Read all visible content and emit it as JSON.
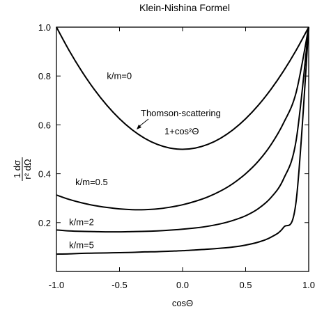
{
  "chart_data": {
    "type": "line",
    "title": "Klein-Nishina Formel",
    "xlabel": "cosΘ",
    "ylabel": {
      "numerator": "1 dσ",
      "denominator": "r² dΩ"
    },
    "xlim": [
      -1.0,
      1.0
    ],
    "ylim": [
      0.0,
      1.0
    ],
    "xticks": [
      -1.0,
      -0.5,
      0.0,
      0.5,
      1.0
    ],
    "xtick_labels": [
      "-1.0",
      "-0.5",
      "0.0",
      "0.5",
      "1.0"
    ],
    "yticks": [
      0.2,
      0.4,
      0.6,
      0.8,
      1.0
    ],
    "ytick_labels": [
      "0.2",
      "0.4",
      "0.6",
      "0.8",
      "1.0"
    ],
    "grid": false,
    "legend": "none",
    "line_color": "#000000",
    "series": [
      {
        "name": "k/m=0",
        "x": [
          -1.0,
          -0.9,
          -0.8,
          -0.7,
          -0.6,
          -0.5,
          -0.4,
          -0.3,
          -0.2,
          -0.1,
          0.0,
          0.1,
          0.2,
          0.3,
          0.4,
          0.5,
          0.6,
          0.7,
          0.8,
          0.9,
          1.0
        ],
        "y": [
          1.0,
          0.905,
          0.82,
          0.745,
          0.68,
          0.625,
          0.58,
          0.545,
          0.52,
          0.505,
          0.5,
          0.505,
          0.52,
          0.545,
          0.58,
          0.625,
          0.68,
          0.745,
          0.82,
          0.905,
          1.0
        ]
      },
      {
        "name": "k/m=0.5",
        "x": [
          -1.0,
          -0.9,
          -0.8,
          -0.7,
          -0.6,
          -0.5,
          -0.4,
          -0.3,
          -0.2,
          -0.1,
          0.0,
          0.1,
          0.2,
          0.3,
          0.4,
          0.5,
          0.6,
          0.7,
          0.8,
          0.9,
          1.0
        ],
        "y": [
          0.313,
          0.295,
          0.281,
          0.27,
          0.262,
          0.256,
          0.253,
          0.253,
          0.256,
          0.263,
          0.273,
          0.287,
          0.305,
          0.329,
          0.36,
          0.4,
          0.451,
          0.518,
          0.607,
          0.732,
          1.0
        ]
      },
      {
        "name": "k/m=2",
        "x": [
          -1.0,
          -0.9,
          -0.8,
          -0.7,
          -0.6,
          -0.5,
          -0.4,
          -0.3,
          -0.2,
          -0.1,
          0.0,
          0.1,
          0.2,
          0.3,
          0.4,
          0.5,
          0.6,
          0.7,
          0.8,
          0.9,
          1.0
        ],
        "y": [
          0.17,
          0.166,
          0.164,
          0.163,
          0.162,
          0.162,
          0.163,
          0.164,
          0.166,
          0.169,
          0.173,
          0.178,
          0.185,
          0.195,
          0.209,
          0.228,
          0.257,
          0.302,
          0.378,
          0.535,
          1.0
        ]
      },
      {
        "name": "k/m=5",
        "x": [
          -1.0,
          -0.9,
          -0.8,
          -0.7,
          -0.6,
          -0.5,
          -0.4,
          -0.3,
          -0.2,
          -0.1,
          0.0,
          0.1,
          0.2,
          0.3,
          0.4,
          0.5,
          0.6,
          0.7,
          0.8,
          0.9,
          1.0
        ],
        "y": [
          0.071,
          0.072,
          0.074,
          0.075,
          0.076,
          0.077,
          0.078,
          0.08,
          0.081,
          0.083,
          0.085,
          0.088,
          0.091,
          0.095,
          0.1,
          0.108,
          0.12,
          0.14,
          0.18,
          0.286,
          1.0
        ]
      }
    ],
    "annotations": [
      {
        "text": "Thomson-scattering",
        "points_to_series": "k/m=0",
        "arrow": true
      },
      {
        "text": "1+cos²Θ"
      }
    ]
  }
}
